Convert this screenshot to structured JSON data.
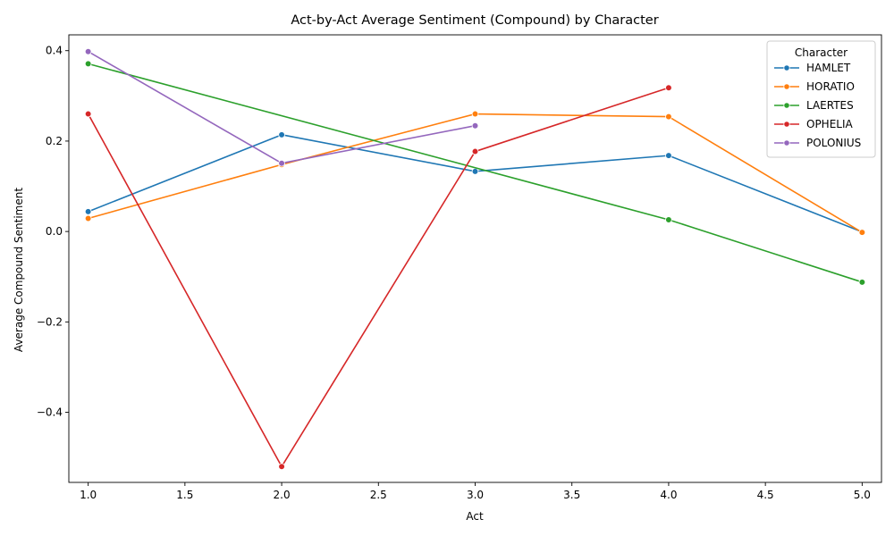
{
  "chart_data": {
    "type": "line",
    "title": "Act-by-Act Average Sentiment (Compound) by Character",
    "xlabel": "Act",
    "ylabel": "Average Compound Sentiment",
    "xlim": [
      0.9,
      5.1
    ],
    "ylim": [
      -0.555,
      0.435
    ],
    "x_ticks": [
      1.0,
      1.5,
      2.0,
      2.5,
      3.0,
      3.5,
      4.0,
      4.5,
      5.0
    ],
    "x_tick_labels": [
      "1.0",
      "1.5",
      "2.0",
      "2.5",
      "3.0",
      "3.5",
      "4.0",
      "4.5",
      "5.0"
    ],
    "y_ticks": [
      -0.4,
      -0.2,
      0.0,
      0.2,
      0.4
    ],
    "y_tick_labels": [
      "−0.4",
      "−0.2",
      "0.0",
      "0.2",
      "0.4"
    ],
    "grid": false,
    "legend": {
      "title": "Character",
      "placement": "top-right"
    },
    "series": [
      {
        "name": "HAMLET",
        "color": "#1f77b4",
        "x": [
          1,
          2,
          3,
          4,
          5
        ],
        "y": [
          0.044,
          0.214,
          0.133,
          0.168,
          -0.001
        ]
      },
      {
        "name": "HORATIO",
        "color": "#ff7f0e",
        "x": [
          1,
          2,
          3,
          4,
          5
        ],
        "y": [
          0.029,
          0.148,
          0.26,
          0.254,
          -0.002
        ]
      },
      {
        "name": "LAERTES",
        "color": "#2ca02c",
        "x": [
          1,
          4,
          5
        ],
        "y": [
          0.371,
          0.026,
          -0.112
        ]
      },
      {
        "name": "OPHELIA",
        "color": "#d62728",
        "x": [
          1,
          2,
          3,
          4
        ],
        "y": [
          0.26,
          -0.52,
          0.177,
          0.318
        ]
      },
      {
        "name": "POLONIUS",
        "color": "#9467bd",
        "x": [
          1,
          2,
          3
        ],
        "y": [
          0.398,
          0.151,
          0.234
        ]
      }
    ]
  }
}
